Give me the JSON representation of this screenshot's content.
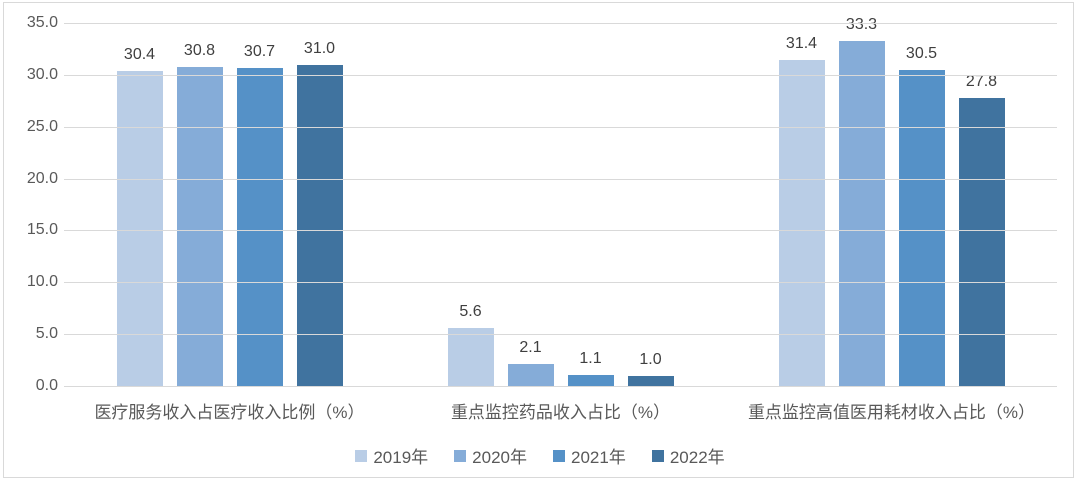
{
  "colors": {
    "background": "#ffffff",
    "frame_border": "#d9d9d9",
    "gridline": "#d9d9d9",
    "axis_text": "#595959",
    "category_text": "#595959",
    "legend_text": "#595959",
    "value_label_text": "#3f3f3f",
    "series": [
      "#b9cde6",
      "#85acd8",
      "#5591c7",
      "#40739f"
    ]
  },
  "chart_data": {
    "type": "bar",
    "title": "",
    "xlabel": "",
    "ylabel": "",
    "categories": [
      "医疗服务收入占医疗收入比例（%）",
      "重点监控药品收入占比（%）",
      "重点监控高值医用耗材收入占比（%）"
    ],
    "series": [
      {
        "name": "2019年",
        "values": [
          30.4,
          5.6,
          31.4
        ]
      },
      {
        "name": "2020年",
        "values": [
          30.8,
          2.1,
          33.3
        ]
      },
      {
        "name": "2021年",
        "values": [
          30.7,
          1.1,
          30.5
        ]
      },
      {
        "name": "2022年",
        "values": [
          31.0,
          1.0,
          27.8
        ]
      }
    ],
    "ylim": [
      0,
      35
    ],
    "ytick_step": 5,
    "ytick_labels": [
      "35.0",
      "30.0",
      "25.0",
      "20.0",
      "15.0",
      "10.0",
      "5.0",
      "0.0"
    ],
    "value_label_decimals": 1,
    "grid": true,
    "legend_position": "bottom"
  }
}
